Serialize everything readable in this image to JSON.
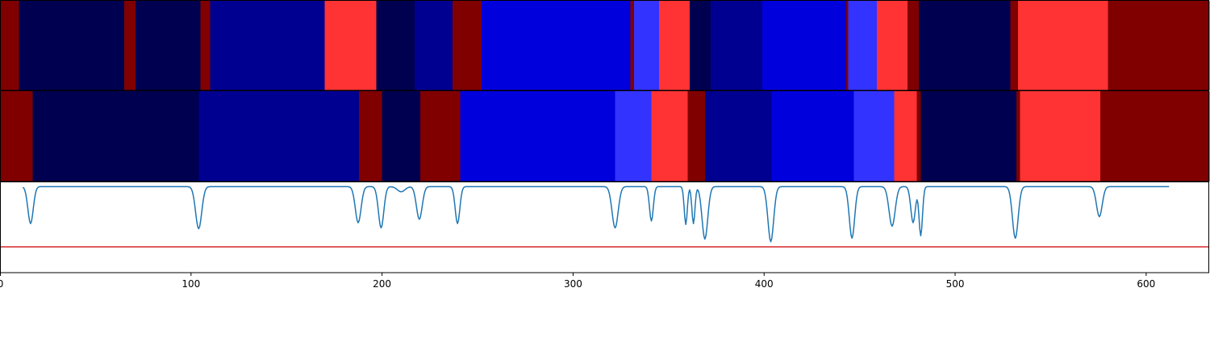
{
  "chart_data": {
    "type": "heatmap",
    "xlim": [
      0,
      633
    ],
    "x_ticks": [
      0,
      100,
      200,
      300,
      400,
      500,
      600
    ],
    "x_tick_labels": [
      "0",
      "100",
      "200",
      "300",
      "400",
      "500",
      "600"
    ],
    "colors": {
      "c0": "#000050",
      "c1": "#000090",
      "c2": "#0000dd",
      "c3": "#3333ff",
      "c4": "#ff3333",
      "c5": "#800000",
      "line": "#1f77b4",
      "threshold": "#d62728"
    },
    "tracks": [
      {
        "segments": [
          {
            "start": 0,
            "end": 10,
            "class": "c5"
          },
          {
            "start": 10,
            "end": 65,
            "class": "c0"
          },
          {
            "start": 65,
            "end": 71,
            "class": "c5"
          },
          {
            "start": 71,
            "end": 105,
            "class": "c0"
          },
          {
            "start": 105,
            "end": 110,
            "class": "c5"
          },
          {
            "start": 110,
            "end": 170,
            "class": "c1"
          },
          {
            "start": 170,
            "end": 197,
            "class": "c4"
          },
          {
            "start": 197,
            "end": 217,
            "class": "c0"
          },
          {
            "start": 217,
            "end": 237,
            "class": "c1"
          },
          {
            "start": 237,
            "end": 252,
            "class": "c5"
          },
          {
            "start": 252,
            "end": 330,
            "class": "c2"
          },
          {
            "start": 330,
            "end": 332,
            "class": "c5"
          },
          {
            "start": 332,
            "end": 345,
            "class": "c3"
          },
          {
            "start": 345,
            "end": 361,
            "class": "c4"
          },
          {
            "start": 361,
            "end": 372,
            "class": "c0"
          },
          {
            "start": 372,
            "end": 399,
            "class": "c1"
          },
          {
            "start": 399,
            "end": 443,
            "class": "c2"
          },
          {
            "start": 443,
            "end": 444,
            "class": "c5"
          },
          {
            "start": 444,
            "end": 459,
            "class": "c3"
          },
          {
            "start": 459,
            "end": 475,
            "class": "c4"
          },
          {
            "start": 475,
            "end": 481,
            "class": "c5"
          },
          {
            "start": 481,
            "end": 529,
            "class": "c0"
          },
          {
            "start": 529,
            "end": 533,
            "class": "c5"
          },
          {
            "start": 533,
            "end": 580,
            "class": "c4"
          },
          {
            "start": 580,
            "end": 633,
            "class": "c5"
          }
        ]
      },
      {
        "segments": [
          {
            "start": 0,
            "end": 17,
            "class": "c5"
          },
          {
            "start": 17,
            "end": 104,
            "class": "c0"
          },
          {
            "start": 104,
            "end": 188,
            "class": "c1"
          },
          {
            "start": 188,
            "end": 200,
            "class": "c5"
          },
          {
            "start": 200,
            "end": 220,
            "class": "c0"
          },
          {
            "start": 220,
            "end": 241,
            "class": "c5"
          },
          {
            "start": 241,
            "end": 322,
            "class": "c2"
          },
          {
            "start": 322,
            "end": 341,
            "class": "c3"
          },
          {
            "start": 341,
            "end": 360,
            "class": "c4"
          },
          {
            "start": 360,
            "end": 369,
            "class": "c5"
          },
          {
            "start": 369,
            "end": 404,
            "class": "c1"
          },
          {
            "start": 404,
            "end": 447,
            "class": "c2"
          },
          {
            "start": 447,
            "end": 468,
            "class": "c3"
          },
          {
            "start": 468,
            "end": 480,
            "class": "c4"
          },
          {
            "start": 480,
            "end": 482,
            "class": "c5"
          },
          {
            "start": 482,
            "end": 532,
            "class": "c0"
          },
          {
            "start": 532,
            "end": 534,
            "class": "c5"
          },
          {
            "start": 534,
            "end": 576,
            "class": "c4"
          },
          {
            "start": 576,
            "end": 633,
            "class": "c5"
          }
        ]
      }
    ],
    "line_panel": {
      "ylim": [
        -1.0,
        0.05
      ],
      "threshold": -0.7,
      "baseline": 0.0,
      "dips": [
        {
          "x": 16,
          "depth": 0.43,
          "width": 1.4
        },
        {
          "x": 104,
          "depth": 0.49,
          "width": 1.6
        },
        {
          "x": 187.5,
          "depth": 0.42,
          "width": 1.5
        },
        {
          "x": 199.5,
          "depth": 0.48,
          "width": 1.4
        },
        {
          "x": 210,
          "depth": 0.06,
          "width": 2.0
        },
        {
          "x": 219.5,
          "depth": 0.38,
          "width": 1.5
        },
        {
          "x": 239.5,
          "depth": 0.43,
          "width": 1.2
        },
        {
          "x": 322,
          "depth": 0.48,
          "width": 1.6
        },
        {
          "x": 341,
          "depth": 0.4,
          "width": 1.0
        },
        {
          "x": 359,
          "depth": 0.44,
          "width": 0.8
        },
        {
          "x": 363,
          "depth": 0.43,
          "width": 0.8
        },
        {
          "x": 369,
          "depth": 0.61,
          "width": 1.5
        },
        {
          "x": 403.5,
          "depth": 0.64,
          "width": 1.5
        },
        {
          "x": 446,
          "depth": 0.6,
          "width": 1.4
        },
        {
          "x": 467,
          "depth": 0.46,
          "width": 1.6
        },
        {
          "x": 478,
          "depth": 0.42,
          "width": 1.2
        },
        {
          "x": 482,
          "depth": 0.57,
          "width": 0.9
        },
        {
          "x": 531.5,
          "depth": 0.6,
          "width": 1.5
        },
        {
          "x": 575.5,
          "depth": 0.35,
          "width": 1.5
        }
      ]
    }
  }
}
